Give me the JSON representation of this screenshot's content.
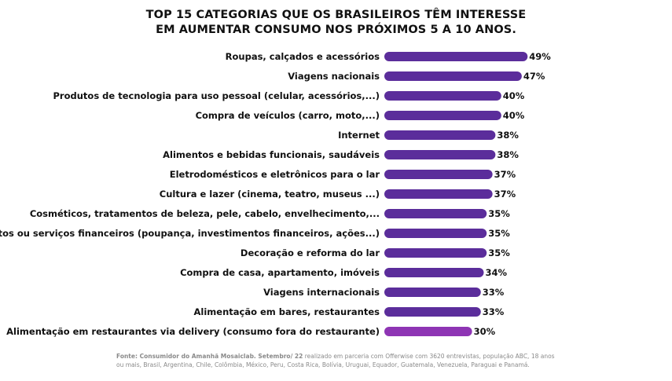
{
  "title": {
    "line1": "TOP 15 CATEGORIAS QUE OS BRASILEIROS TÊM INTERESSE",
    "line2": "EM AUMENTAR CONSUMO NOS PRÓXIMOS 5 A 10 ANOS."
  },
  "chart_data": {
    "type": "bar",
    "orientation": "horizontal",
    "title": "TOP 15 CATEGORIAS QUE OS BRASILEIROS TÊM INTERESSE EM AUMENTAR CONSUMO NOS PRÓXIMOS 5 A 10 ANOS.",
    "xlabel": "",
    "ylabel": "",
    "unit": "%",
    "xlim": [
      0,
      100
    ],
    "grid": false,
    "legend": "none",
    "colors": {
      "bar": "#5b2d9b",
      "highlight_bar": "#8e35b4"
    },
    "categories": [
      "Roupas, calçados e acessórios",
      "Viagens nacionais",
      "Produtos de tecnologia para uso pessoal (celular, acessórios,...)",
      "Compra de veículos (carro, moto,...)",
      "Internet",
      "Alimentos e bebidas funcionais, saudáveis",
      "Eletrodomésticos e eletrônicos para o lar",
      "Cultura e lazer (cinema, teatro, museus ...)",
      "Cosméticos, tratamentos de beleza, pele, cabelo, envelhecimento,...",
      "Produtos ou serviços financeiros (poupança, investimentos financeiros, ações...)",
      "Decoração e reforma do lar",
      "Compra de casa, apartamento, imóveis",
      "Viagens internacionais",
      "Alimentação em bares, restaurantes",
      "Alimentação em restaurantes via delivery (consumo fora do restaurante)"
    ],
    "values": [
      49,
      47,
      40,
      40,
      38,
      38,
      37,
      37,
      35,
      35,
      35,
      34,
      33,
      33,
      30
    ],
    "value_labels": [
      "49%",
      "47%",
      "40%",
      "40%",
      "38%",
      "38%",
      "37%",
      "37%",
      "35%",
      "35%",
      "35%",
      "34%",
      "33%",
      "33%",
      "30%"
    ],
    "highlight_index": 14
  },
  "source": {
    "bold": "Fonte: Consumidor do Amanhã Mosaiclab. Setembro/ 22",
    "text": " realizado em parceria com Offerwise com 3620 entrevistas, população ABC, 18 anos ou mais, Brasil, Argentina, Chile, Colômbia, México, Peru, Costa Rica, Bolívia, Uruguai, Equador, Guatemala, Venezuela, Paraguai e Panamá."
  }
}
